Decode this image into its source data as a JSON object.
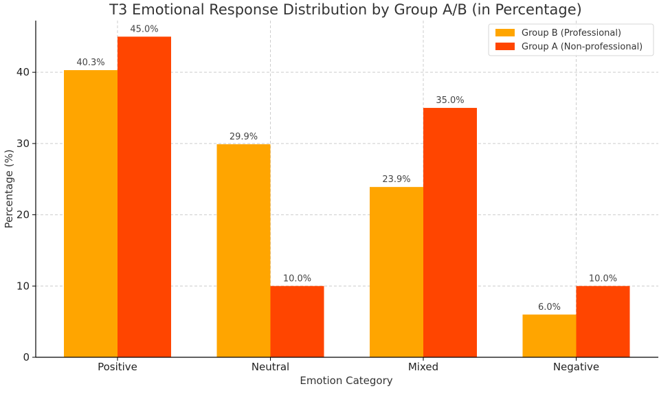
{
  "chart_data": {
    "type": "bar",
    "title": "T3 Emotional Response Distribution by Group A/B (in Percentage)",
    "xlabel": "Emotion Category",
    "ylabel": "Percentage (%)",
    "categories": [
      "Positive",
      "Neutral",
      "Mixed",
      "Negative"
    ],
    "series": [
      {
        "name": "Group B (Professional)",
        "color": "#FFA500",
        "values": [
          40.3,
          29.9,
          23.9,
          6.0
        ],
        "labels": [
          "40.3%",
          "29.9%",
          "23.9%",
          "6.0%"
        ]
      },
      {
        "name": "Group A (Non-professional)",
        "color": "#FF4500",
        "values": [
          45.0,
          10.0,
          35.0,
          10.0
        ],
        "labels": [
          "45.0%",
          "10.0%",
          "35.0%",
          "10.0%"
        ]
      }
    ],
    "ylim": [
      0,
      47.25
    ],
    "yticks": [
      0,
      10,
      20,
      30,
      40
    ],
    "grid": true,
    "legend_position": "top-right"
  }
}
